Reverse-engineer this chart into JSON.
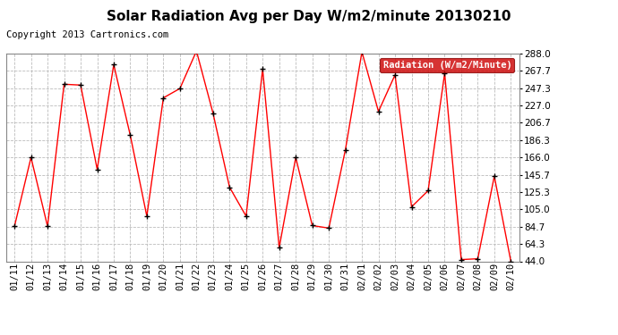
{
  "title": "Solar Radiation Avg per Day W/m2/minute 20130210",
  "copyright_text": "Copyright 2013 Cartronics.com",
  "legend_label": "Radiation (W/m2/Minute)",
  "background_color": "#ffffff",
  "plot_bg_color": "#ffffff",
  "grid_color": "#bbbbbb",
  "line_color": "#ff0000",
  "marker_color": "#000000",
  "legend_bg": "#cc0000",
  "legend_text_color": "#ffffff",
  "dates": [
    "01/11",
    "01/12",
    "01/13",
    "01/14",
    "01/15",
    "01/16",
    "01/17",
    "01/18",
    "01/19",
    "01/20",
    "01/21",
    "01/22",
    "01/23",
    "01/24",
    "01/25",
    "01/26",
    "01/27",
    "01/28",
    "01/29",
    "01/30",
    "01/31",
    "02/01",
    "02/02",
    "02/03",
    "02/04",
    "02/05",
    "02/06",
    "02/07",
    "02/08",
    "02/09",
    "02/10"
  ],
  "values": [
    85,
    166,
    85,
    252,
    251,
    152,
    275,
    192,
    97,
    236,
    247,
    291,
    218,
    131,
    97,
    270,
    60,
    166,
    86,
    83,
    175,
    290,
    220,
    263,
    108,
    127,
    265,
    46,
    47,
    144,
    44
  ],
  "ylim": [
    44.0,
    288.0
  ],
  "yticks": [
    44.0,
    64.3,
    84.7,
    105.0,
    125.3,
    145.7,
    166.0,
    186.3,
    206.7,
    227.0,
    247.3,
    267.7,
    288.0
  ],
  "title_fontsize": 11,
  "tick_fontsize": 7.5,
  "copyright_fontsize": 7.5,
  "legend_fontsize": 7.5
}
